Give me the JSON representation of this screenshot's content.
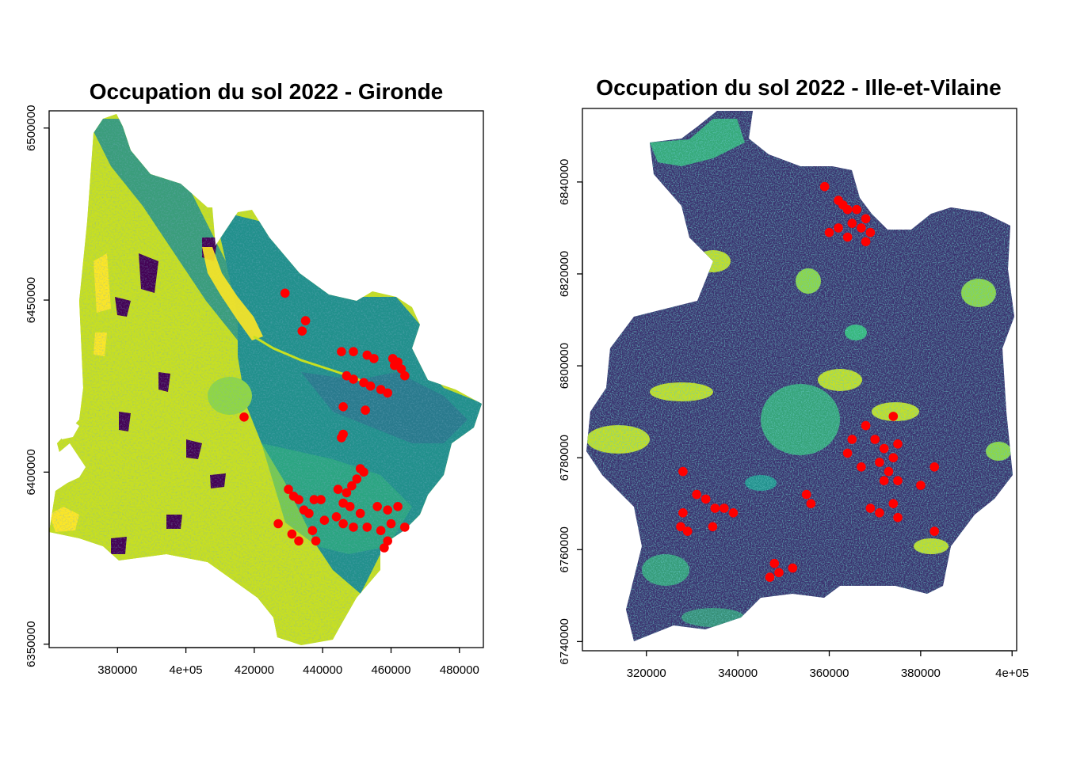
{
  "figure": {
    "panels": [
      {
        "title": "Occupation du sol 2022 - Gironde",
        "x_ticks": [
          "380000",
          "4e+05",
          "420000",
          "440000",
          "460000",
          "480000"
        ],
        "y_ticks": [
          "6350000",
          "6400000",
          "6450000",
          "6500000"
        ]
      },
      {
        "title": "Occupation du sol 2022 - Ille-et-Vilaine",
        "x_ticks": [
          "320000",
          "340000",
          "360000",
          "380000",
          "4e+05"
        ],
        "y_ticks": [
          "6740000",
          "6760000",
          "6780000",
          "6800000",
          "6820000",
          "6840000"
        ]
      }
    ]
  },
  "chart_data": [
    {
      "type": "map",
      "title": "Occupation du sol 2022 - Gironde",
      "xlim": [
        360000,
        487000
      ],
      "ylim": [
        6349000,
        6505000
      ],
      "x_ticks": [
        380000,
        400000,
        420000,
        440000,
        460000,
        480000
      ],
      "y_ticks": [
        6350000,
        6400000,
        6450000,
        6500000
      ],
      "palette": [
        "#440154",
        "#31688e",
        "#21908c",
        "#35b779",
        "#90d743",
        "#c8e020",
        "#fde725"
      ],
      "point_color": "#ff0000",
      "points": [
        [
          429000,
          6452000
        ],
        [
          435000,
          6444000
        ],
        [
          434000,
          6441000
        ],
        [
          417000,
          6416000
        ],
        [
          445500,
          6435000
        ],
        [
          449000,
          6435000
        ],
        [
          453000,
          6434000
        ],
        [
          455000,
          6433000
        ],
        [
          460500,
          6433000
        ],
        [
          462000,
          6432000
        ],
        [
          463000,
          6430000
        ],
        [
          461000,
          6431000
        ],
        [
          464000,
          6428000
        ],
        [
          447000,
          6428000
        ],
        [
          449000,
          6427000
        ],
        [
          452000,
          6426000
        ],
        [
          454000,
          6425000
        ],
        [
          457000,
          6424000
        ],
        [
          459000,
          6423000
        ],
        [
          446000,
          6419000
        ],
        [
          452500,
          6418000
        ],
        [
          446000,
          6411000
        ],
        [
          445500,
          6410000
        ],
        [
          451000,
          6401000
        ],
        [
          452000,
          6400000
        ],
        [
          450000,
          6398000
        ],
        [
          448500,
          6396000
        ],
        [
          447000,
          6394000
        ],
        [
          444500,
          6395000
        ],
        [
          446000,
          6391000
        ],
        [
          448000,
          6390000
        ],
        [
          451000,
          6388000
        ],
        [
          456000,
          6390000
        ],
        [
          459000,
          6389000
        ],
        [
          462000,
          6390000
        ],
        [
          460000,
          6385000
        ],
        [
          444000,
          6387000
        ],
        [
          446000,
          6385000
        ],
        [
          449000,
          6384000
        ],
        [
          453000,
          6384000
        ],
        [
          457000,
          6383000
        ],
        [
          459000,
          6380000
        ],
        [
          458000,
          6378000
        ],
        [
          464000,
          6384000
        ],
        [
          437500,
          6392000
        ],
        [
          439500,
          6392000
        ],
        [
          430000,
          6395000
        ],
        [
          431500,
          6393000
        ],
        [
          433000,
          6392000
        ],
        [
          434500,
          6389000
        ],
        [
          436000,
          6388000
        ],
        [
          440500,
          6386000
        ],
        [
          437000,
          6383000
        ],
        [
          431000,
          6382000
        ],
        [
          433000,
          6380000
        ],
        [
          427000,
          6385000
        ],
        [
          438000,
          6380000
        ]
      ]
    },
    {
      "type": "map",
      "title": "Occupation du sol 2022 - Ille-et-Vilaine",
      "xlim": [
        306000,
        401000
      ],
      "ylim": [
        6738000,
        6856000
      ],
      "x_ticks": [
        320000,
        340000,
        360000,
        380000,
        400000
      ],
      "y_ticks": [
        6740000,
        6760000,
        6780000,
        6800000,
        6820000,
        6840000
      ],
      "palette": [
        "#440154",
        "#31688e",
        "#21908c",
        "#35b779",
        "#90d743",
        "#c8e020",
        "#fde725"
      ],
      "point_color": "#ff0000",
      "points": [
        [
          359000,
          6839000
        ],
        [
          362000,
          6836000
        ],
        [
          363000,
          6835000
        ],
        [
          364000,
          6834000
        ],
        [
          366000,
          6834000
        ],
        [
          368000,
          6832000
        ],
        [
          367000,
          6830000
        ],
        [
          365000,
          6831000
        ],
        [
          362000,
          6830000
        ],
        [
          360000,
          6829000
        ],
        [
          364000,
          6828000
        ],
        [
          368000,
          6827000
        ],
        [
          369000,
          6829000
        ],
        [
          374000,
          6789000
        ],
        [
          368000,
          6787000
        ],
        [
          370000,
          6784000
        ],
        [
          372000,
          6782000
        ],
        [
          374000,
          6780000
        ],
        [
          371000,
          6779000
        ],
        [
          373000,
          6777000
        ],
        [
          375000,
          6775000
        ],
        [
          372000,
          6775000
        ],
        [
          365000,
          6784000
        ],
        [
          364000,
          6781000
        ],
        [
          367000,
          6778000
        ],
        [
          375000,
          6783000
        ],
        [
          383000,
          6778000
        ],
        [
          380000,
          6774000
        ],
        [
          369000,
          6769000
        ],
        [
          371000,
          6768000
        ],
        [
          374000,
          6770000
        ],
        [
          375000,
          6767000
        ],
        [
          383000,
          6764000
        ],
        [
          328000,
          6777000
        ],
        [
          331000,
          6772000
        ],
        [
          333000,
          6771000
        ],
        [
          335000,
          6769000
        ],
        [
          337000,
          6769000
        ],
        [
          339000,
          6768000
        ],
        [
          328000,
          6768000
        ],
        [
          327500,
          6765000
        ],
        [
          334500,
          6765000
        ],
        [
          329000,
          6764000
        ],
        [
          355000,
          6772000
        ],
        [
          356000,
          6770000
        ],
        [
          348000,
          6757000
        ],
        [
          349000,
          6755000
        ],
        [
          352000,
          6756000
        ],
        [
          347000,
          6754000
        ]
      ]
    }
  ]
}
